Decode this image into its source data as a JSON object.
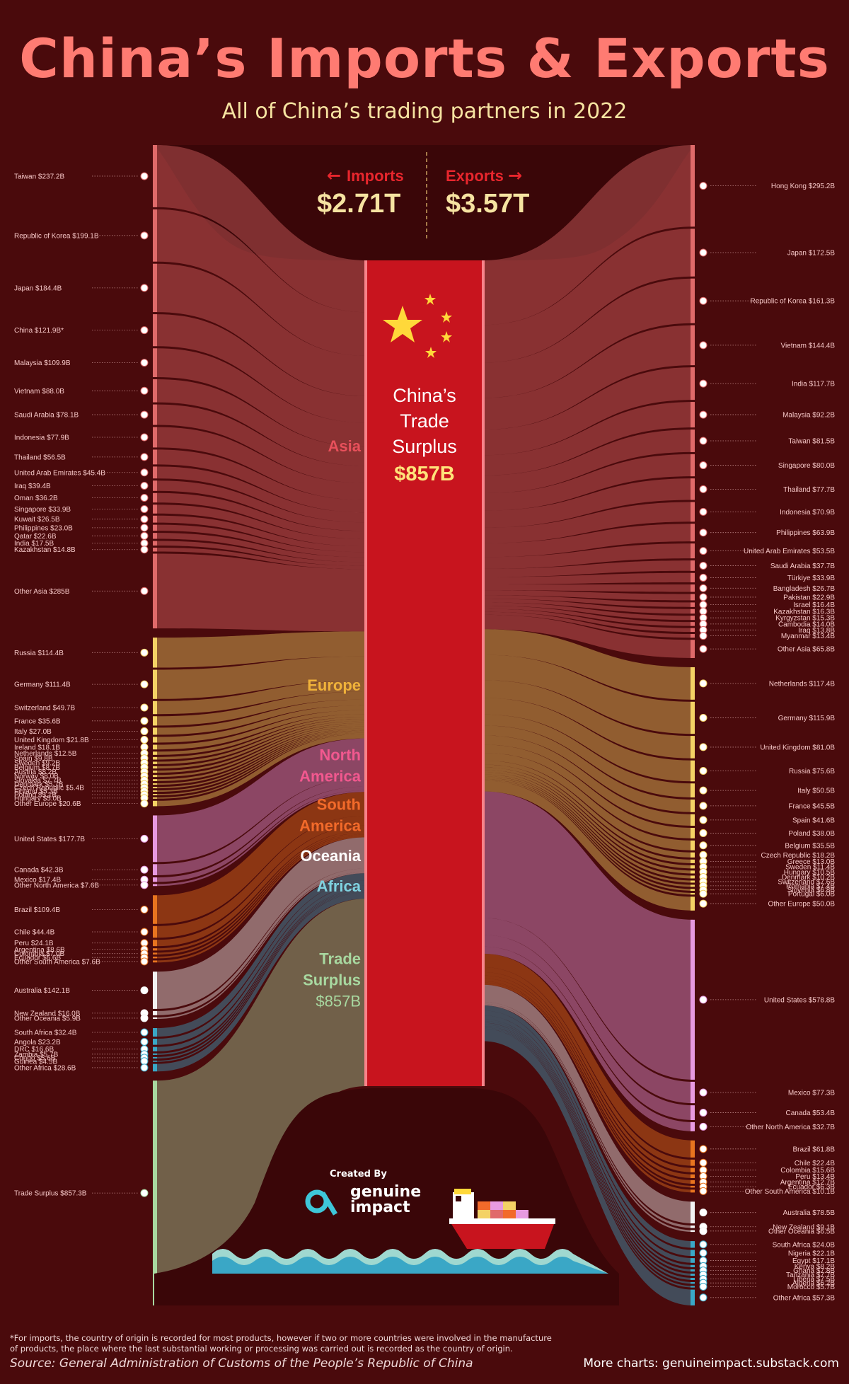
{
  "title": "China’s Imports & Exports",
  "subtitle": "All of China’s trading partners in 2022",
  "header": {
    "imports_label": "Imports",
    "imports_value": "$2.71T",
    "exports_label": "Exports",
    "exports_value": "$3.57T"
  },
  "center": {
    "line1": "China’s",
    "line2": "Trade",
    "line3": "Surplus",
    "value": "$857B"
  },
  "regions": [
    {
      "key": "asia",
      "label": [
        "Asia"
      ],
      "color": "#e8505b"
    },
    {
      "key": "europe",
      "label": [
        "Europe"
      ],
      "color": "#f0b23a"
    },
    {
      "key": "north_america",
      "label": [
        "North",
        "America"
      ],
      "color": "#f2588f"
    },
    {
      "key": "south_america",
      "label": [
        "South",
        "America"
      ],
      "color": "#f26a2a"
    },
    {
      "key": "oceania",
      "label": [
        "Oceania"
      ],
      "color": "#ffffff"
    },
    {
      "key": "africa",
      "label": [
        "Africa"
      ],
      "color": "#7fd2e0"
    }
  ],
  "trade_surplus_label": [
    "Trade",
    "Surplus"
  ],
  "trade_surplus_value": "$857B",
  "credit": {
    "created_by": "Created By",
    "brand_line1": "genuine",
    "brand_line2": "impact"
  },
  "footnote_line1": "*For imports, the country of origin is recorded for most products, however if two or more countries were involved in the manufacture",
  "footnote_line2": "of products, the place where the last substantial working or processing was carried out is recorded as the country of origin.",
  "source": "Source: General Administration of Customs of the People’s Republic of China",
  "more_charts": "More charts: genuineimpact.substack.com",
  "colors": {
    "asia": "#e06a6a",
    "europe": "#f4d265",
    "north_america": "#e79ae0",
    "south_america": "#e8741f",
    "oceania": "#f2f2f2",
    "africa": "#3aa7c6",
    "surplus": "#a8d8a0",
    "background": "#4a0a0c",
    "china_red": "#c8141e"
  },
  "chart_data": {
    "type": "sankey",
    "unit": "USD billions",
    "imports": [
      {
        "label": "Taiwan $237.2B",
        "value": 237.2,
        "region": "asia"
      },
      {
        "label": "Republic of Korea $199.1B",
        "value": 199.1,
        "region": "asia"
      },
      {
        "label": "Japan $184.4B",
        "value": 184.4,
        "region": "asia"
      },
      {
        "label": "China $121.9B*",
        "value": 121.9,
        "region": "asia"
      },
      {
        "label": "Malaysia $109.9B",
        "value": 109.9,
        "region": "asia"
      },
      {
        "label": "Vietnam $88.0B",
        "value": 88.0,
        "region": "asia"
      },
      {
        "label": "Saudi Arabia $78.1B",
        "value": 78.1,
        "region": "asia"
      },
      {
        "label": "Indonesia $77.9B",
        "value": 77.9,
        "region": "asia"
      },
      {
        "label": "Thailand $56.5B",
        "value": 56.5,
        "region": "asia"
      },
      {
        "label": "United Arab Emirates $45.4B",
        "value": 45.4,
        "region": "asia"
      },
      {
        "label": "Iraq $39.4B",
        "value": 39.4,
        "region": "asia"
      },
      {
        "label": "Oman $36.2B",
        "value": 36.2,
        "region": "asia"
      },
      {
        "label": "Singapore $33.9B",
        "value": 33.9,
        "region": "asia"
      },
      {
        "label": "Kuwait $26.5B",
        "value": 26.5,
        "region": "asia"
      },
      {
        "label": "Philippines $23.0B",
        "value": 23.0,
        "region": "asia"
      },
      {
        "label": "Qatar $22.6B",
        "value": 22.6,
        "region": "asia"
      },
      {
        "label": "India $17.5B",
        "value": 17.5,
        "region": "asia"
      },
      {
        "label": "Kazakhstan $14.8B",
        "value": 14.8,
        "region": "asia"
      },
      {
        "label": "Other Asia $285B",
        "value": 285,
        "region": "asia"
      },
      {
        "label": "Russia $114.4B",
        "value": 114.4,
        "region": "europe"
      },
      {
        "label": "Germany $111.4B",
        "value": 111.4,
        "region": "europe"
      },
      {
        "label": "Switzerland $49.7B",
        "value": 49.7,
        "region": "europe"
      },
      {
        "label": "France $35.6B",
        "value": 35.6,
        "region": "europe"
      },
      {
        "label": "Italy $27.0B",
        "value": 27.0,
        "region": "europe"
      },
      {
        "label": "United Kingdom $21.8B",
        "value": 21.8,
        "region": "europe"
      },
      {
        "label": "Ireland $18.1B",
        "value": 18.1,
        "region": "europe"
      },
      {
        "label": "Netherlands $12.5B",
        "value": 12.5,
        "region": "europe"
      },
      {
        "label": "Spain $9.8B",
        "value": 9.8,
        "region": "europe"
      },
      {
        "label": "Sweden $9.2B",
        "value": 9.2,
        "region": "europe"
      },
      {
        "label": "Belgium $8.7B",
        "value": 8.7,
        "region": "europe"
      },
      {
        "label": "Austria $8.2B",
        "value": 8.2,
        "region": "europe"
      },
      {
        "label": "Norway $8.0B",
        "value": 8.0,
        "region": "europe"
      },
      {
        "label": "Slovakia $7.7B",
        "value": 7.7,
        "region": "europe"
      },
      {
        "label": "Denmark $5.7B",
        "value": 5.7,
        "region": "europe"
      },
      {
        "label": "Czech Republic $5.4B",
        "value": 5.4,
        "region": "europe"
      },
      {
        "label": "Finland $5.3B",
        "value": 5.3,
        "region": "europe"
      },
      {
        "label": "Poland $5.1B",
        "value": 5.1,
        "region": "europe"
      },
      {
        "label": "Hungary $5.0B",
        "value": 5.0,
        "region": "europe"
      },
      {
        "label": "Other Europe $20.6B",
        "value": 20.6,
        "region": "europe"
      },
      {
        "label": "United States $177.7B",
        "value": 177.7,
        "region": "north_america"
      },
      {
        "label": "Canada $42.3B",
        "value": 42.3,
        "region": "north_america"
      },
      {
        "label": "Mexico $17.4B",
        "value": 17.4,
        "region": "north_america"
      },
      {
        "label": "Other North America $7.6B",
        "value": 7.6,
        "region": "north_america"
      },
      {
        "label": "Brazil $109.4B",
        "value": 109.4,
        "region": "south_america"
      },
      {
        "label": "Chile $44.4B",
        "value": 44.4,
        "region": "south_america"
      },
      {
        "label": "Peru $24.1B",
        "value": 24.1,
        "region": "south_america"
      },
      {
        "label": "Argentina $8.6B",
        "value": 8.6,
        "region": "south_america"
      },
      {
        "label": "Colombia $7.0B",
        "value": 7.0,
        "region": "south_america"
      },
      {
        "label": "Ecuador $6.6B",
        "value": 6.6,
        "region": "south_america"
      },
      {
        "label": "Other South America $7.6B",
        "value": 7.6,
        "region": "south_america"
      },
      {
        "label": "Australia $142.1B",
        "value": 142.1,
        "region": "oceania"
      },
      {
        "label": "New Zealand $16.0B",
        "value": 16.0,
        "region": "oceania"
      },
      {
        "label": "Other Oceania $5.9B",
        "value": 5.9,
        "region": "oceania"
      },
      {
        "label": "South Africa $32.4B",
        "value": 32.4,
        "region": "africa"
      },
      {
        "label": "Angola $23.2B",
        "value": 23.2,
        "region": "africa"
      },
      {
        "label": "DRC $16.6B",
        "value": 16.6,
        "region": "africa"
      },
      {
        "label": "Zambia $5.7B",
        "value": 5.7,
        "region": "africa"
      },
      {
        "label": "Congo $5.6B",
        "value": 5.6,
        "region": "africa"
      },
      {
        "label": "Guinea $4.5B",
        "value": 4.5,
        "region": "africa"
      },
      {
        "label": "Other Africa $28.6B",
        "value": 28.6,
        "region": "africa"
      },
      {
        "label": "Trade Surplus $857.3B",
        "value": 857.3,
        "region": "surplus"
      }
    ],
    "exports": [
      {
        "label": "Hong Kong $295.2B",
        "value": 295.2,
        "region": "asia"
      },
      {
        "label": "Japan $172.5B",
        "value": 172.5,
        "region": "asia"
      },
      {
        "label": "Republic of Korea $161.3B",
        "value": 161.3,
        "region": "asia"
      },
      {
        "label": "Vietnam $144.4B",
        "value": 144.4,
        "region": "asia"
      },
      {
        "label": "India $117.7B",
        "value": 117.7,
        "region": "asia"
      },
      {
        "label": "Malaysia $92.2B",
        "value": 92.2,
        "region": "asia"
      },
      {
        "label": "Taiwan $81.5B",
        "value": 81.5,
        "region": "asia"
      },
      {
        "label": "Singapore $80.0B",
        "value": 80.0,
        "region": "asia"
      },
      {
        "label": "Thailand $77.7B",
        "value": 77.7,
        "region": "asia"
      },
      {
        "label": "Indonesia $70.9B",
        "value": 70.9,
        "region": "asia"
      },
      {
        "label": "Philippines $63.9B",
        "value": 63.9,
        "region": "asia"
      },
      {
        "label": "United Arab Emirates $53.5B",
        "value": 53.5,
        "region": "asia"
      },
      {
        "label": "Saudi Arabia $37.7B",
        "value": 37.7,
        "region": "asia"
      },
      {
        "label": "Türkiye $33.9B",
        "value": 33.9,
        "region": "asia"
      },
      {
        "label": "Bangladesh $26.7B",
        "value": 26.7,
        "region": "asia"
      },
      {
        "label": "Pakistan $22.9B",
        "value": 22.9,
        "region": "asia"
      },
      {
        "label": "Israel $16.4B",
        "value": 16.4,
        "region": "asia"
      },
      {
        "label": "Kazakhstan $16.3B",
        "value": 16.3,
        "region": "asia"
      },
      {
        "label": "Kyrgyzstan $15.3B",
        "value": 15.3,
        "region": "asia"
      },
      {
        "label": "Cambodia $14.0B",
        "value": 14.0,
        "region": "asia"
      },
      {
        "label": "Iraq $13.8B",
        "value": 13.8,
        "region": "asia"
      },
      {
        "label": "Myanmar $13.4B",
        "value": 13.4,
        "region": "asia"
      },
      {
        "label": "Other Asia $65.8B",
        "value": 65.8,
        "region": "asia"
      },
      {
        "label": "Netherlands $117.4B",
        "value": 117.4,
        "region": "europe"
      },
      {
        "label": "Germany $115.9B",
        "value": 115.9,
        "region": "europe"
      },
      {
        "label": "United Kingdom $81.0B",
        "value": 81.0,
        "region": "europe"
      },
      {
        "label": "Russia $75.6B",
        "value": 75.6,
        "region": "europe"
      },
      {
        "label": "Italy $50.5B",
        "value": 50.5,
        "region": "europe"
      },
      {
        "label": "France $45.5B",
        "value": 45.5,
        "region": "europe"
      },
      {
        "label": "Spain $41.6B",
        "value": 41.6,
        "region": "europe"
      },
      {
        "label": "Poland $38.0B",
        "value": 38.0,
        "region": "europe"
      },
      {
        "label": "Belgium $35.5B",
        "value": 35.5,
        "region": "europe"
      },
      {
        "label": "Czech Republic $18.2B",
        "value": 18.2,
        "region": "europe"
      },
      {
        "label": "Greece $13.0B",
        "value": 13.0,
        "region": "europe"
      },
      {
        "label": "Sweden $11.4B",
        "value": 11.4,
        "region": "europe"
      },
      {
        "label": "Hungary $10.5B",
        "value": 10.5,
        "region": "europe"
      },
      {
        "label": "Denmark $10.2B",
        "value": 10.2,
        "region": "europe"
      },
      {
        "label": "Switzerland $7.6B",
        "value": 7.6,
        "region": "europe"
      },
      {
        "label": "Romania $7.4B",
        "value": 7.4,
        "region": "europe"
      },
      {
        "label": "Slovenia $6.8B",
        "value": 6.8,
        "region": "europe"
      },
      {
        "label": "Portugal $6.0B",
        "value": 6.0,
        "region": "europe"
      },
      {
        "label": "Other Europe $50.0B",
        "value": 50.0,
        "region": "europe"
      },
      {
        "label": "United States $578.8B",
        "value": 578.8,
        "region": "north_america"
      },
      {
        "label": "Mexico $77.3B",
        "value": 77.3,
        "region": "north_america"
      },
      {
        "label": "Canada $53.4B",
        "value": 53.4,
        "region": "north_america"
      },
      {
        "label": "Other North America $32.7B",
        "value": 32.7,
        "region": "north_america"
      },
      {
        "label": "Brazil $61.8B",
        "value": 61.8,
        "region": "south_america"
      },
      {
        "label": "Chile $22.4B",
        "value": 22.4,
        "region": "south_america"
      },
      {
        "label": "Colombia $15.6B",
        "value": 15.6,
        "region": "south_america"
      },
      {
        "label": "Peru $13.4B",
        "value": 13.4,
        "region": "south_america"
      },
      {
        "label": "Argentina $12.7B",
        "value": 12.7,
        "region": "south_america"
      },
      {
        "label": "Ecuador $6.3B",
        "value": 6.3,
        "region": "south_america"
      },
      {
        "label": "Other South America $10.1B",
        "value": 10.1,
        "region": "south_america"
      },
      {
        "label": "Australia $78.5B",
        "value": 78.5,
        "region": "oceania"
      },
      {
        "label": "New Zealand $9.1B",
        "value": 9.1,
        "region": "oceania"
      },
      {
        "label": "Other Oceania $6.5B",
        "value": 6.5,
        "region": "oceania"
      },
      {
        "label": "South Africa $24.0B",
        "value": 24.0,
        "region": "africa"
      },
      {
        "label": "Nigeria $22.1B",
        "value": 22.1,
        "region": "africa"
      },
      {
        "label": "Egypt $17.1B",
        "value": 17.1,
        "region": "africa"
      },
      {
        "label": "Kenya $8.2B",
        "value": 8.2,
        "region": "africa"
      },
      {
        "label": "Ghana $7.8B",
        "value": 7.8,
        "region": "africa"
      },
      {
        "label": "Tanzania $7.7B",
        "value": 7.7,
        "region": "africa"
      },
      {
        "label": "Liberia $7.5B",
        "value": 7.5,
        "region": "africa"
      },
      {
        "label": "Algeria $6.2B",
        "value": 6.2,
        "region": "africa"
      },
      {
        "label": "Morocco $5.7B",
        "value": 5.7,
        "region": "africa"
      },
      {
        "label": "Other Africa $57.3B",
        "value": 57.3,
        "region": "africa"
      }
    ]
  }
}
